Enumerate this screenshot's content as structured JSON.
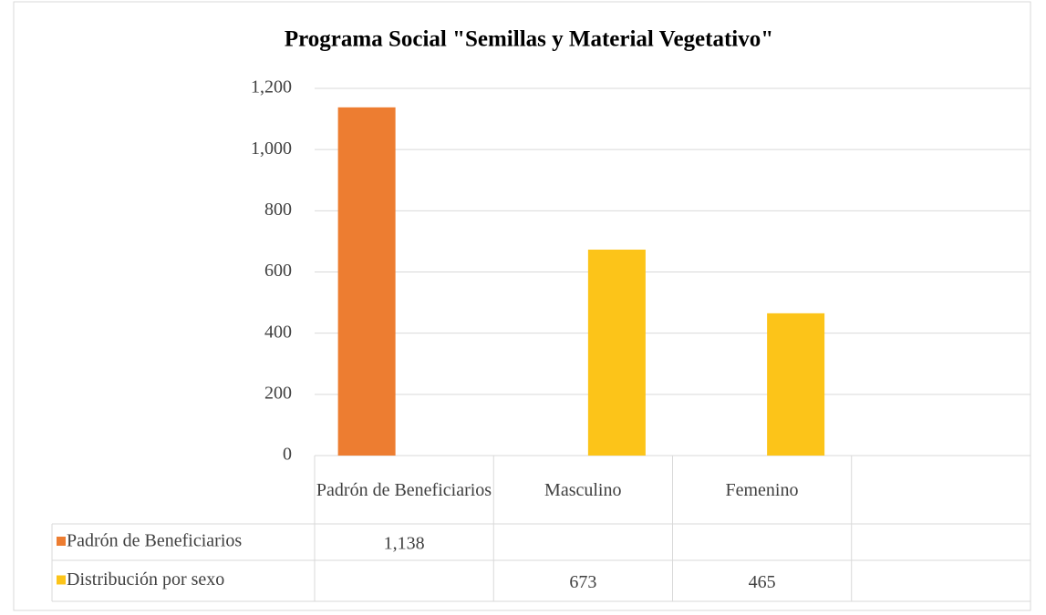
{
  "chart_data": {
    "type": "bar",
    "title": "Programa Social \"Semillas y Material Vegetativo\"",
    "categories": [
      "Padrón de Beneficiarios",
      "Masculino",
      "Femenino",
      null
    ],
    "series": [
      {
        "name": "Padrón de Beneficiarios",
        "color": "#ed7d31",
        "values": [
          1138,
          null,
          null,
          null
        ],
        "value_labels": [
          "1,138",
          null,
          null,
          null
        ]
      },
      {
        "name": "Distribución por sexo",
        "color": "#fcc419",
        "values": [
          null,
          673,
          465,
          null
        ]
      }
    ],
    "ylim": [
      0,
      1200
    ],
    "yticks": [
      0,
      200,
      400,
      600,
      800,
      {
        "value": 1000,
        "label": "1,000"
      },
      {
        "value": 1200,
        "label": "1,200"
      }
    ],
    "grid": true,
    "data_table": true
  }
}
